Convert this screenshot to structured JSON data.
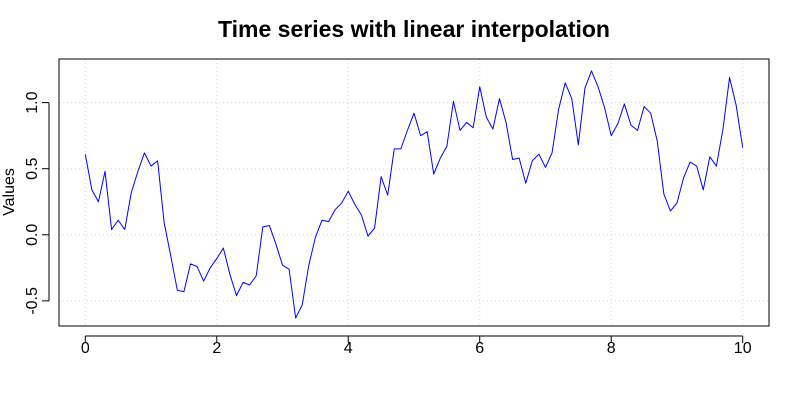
{
  "chart_data": {
    "type": "line",
    "title": "Time series with linear interpolation",
    "xlabel": "",
    "ylabel": "Values",
    "xlim": [
      -0.4,
      10.4
    ],
    "ylim": [
      -0.69,
      1.33
    ],
    "x_ticks": [
      0,
      2,
      4,
      6,
      8,
      10
    ],
    "x_tick_labels": [
      "0",
      "2",
      "4",
      "6",
      "8",
      "10"
    ],
    "y_ticks": [
      -0.5,
      0.0,
      0.5,
      1.0
    ],
    "y_tick_labels": [
      "-0.5",
      "0.0",
      "0.5",
      "1.0"
    ],
    "grid": true,
    "legend": "none",
    "colors": {
      "series": "#0000ff",
      "grid": "#d3d3d3",
      "axis": "#000000"
    },
    "series": [
      {
        "x": [
          0.0,
          0.1,
          0.2,
          0.3,
          0.4,
          0.5,
          0.6,
          0.7,
          0.8,
          0.9,
          1.0,
          1.1,
          1.2,
          1.3,
          1.4,
          1.5,
          1.6,
          1.7,
          1.8,
          1.9,
          2.0,
          2.1,
          2.2,
          2.3,
          2.4,
          2.5,
          2.6,
          2.7,
          2.8,
          2.9,
          3.0,
          3.1,
          3.2,
          3.3,
          3.4,
          3.5,
          3.6,
          3.7,
          3.8,
          3.9,
          4.0,
          4.1,
          4.2,
          4.3,
          4.4,
          4.5,
          4.6,
          4.7,
          4.8,
          4.9,
          5.0,
          5.1,
          5.2,
          5.3,
          5.4,
          5.5,
          5.6,
          5.7,
          5.8,
          5.9,
          6.0,
          6.1,
          6.2,
          6.3,
          6.4,
          6.5,
          6.6,
          6.7,
          6.8,
          6.9,
          7.0,
          7.1,
          7.2,
          7.3,
          7.4,
          7.5,
          7.6,
          7.7,
          7.8,
          7.9,
          8.0,
          8.1,
          8.2,
          8.3,
          8.4,
          8.5,
          8.6,
          8.7,
          8.8,
          8.9,
          9.0,
          9.1,
          9.2,
          9.3,
          9.4,
          9.5,
          9.6,
          9.7,
          9.8,
          9.9,
          10.0
        ],
        "values": [
          0.61,
          0.34,
          0.25,
          0.48,
          0.04,
          0.11,
          0.04,
          0.32,
          0.48,
          0.62,
          0.52,
          0.56,
          0.09,
          -0.16,
          -0.42,
          -0.43,
          -0.22,
          -0.24,
          -0.35,
          -0.25,
          -0.18,
          -0.1,
          -0.3,
          -0.46,
          -0.36,
          -0.38,
          -0.31,
          0.06,
          0.07,
          -0.07,
          -0.23,
          -0.26,
          -0.63,
          -0.53,
          -0.23,
          -0.02,
          0.11,
          0.1,
          0.19,
          0.24,
          0.33,
          0.23,
          0.15,
          -0.01,
          0.05,
          0.44,
          0.3,
          0.65,
          0.65,
          0.79,
          0.92,
          0.75,
          0.78,
          0.46,
          0.58,
          0.67,
          1.01,
          0.79,
          0.85,
          0.81,
          1.12,
          0.89,
          0.8,
          1.03,
          0.85,
          0.57,
          0.58,
          0.39,
          0.56,
          0.61,
          0.51,
          0.62,
          0.95,
          1.15,
          1.03,
          0.68,
          1.11,
          1.24,
          1.12,
          0.96,
          0.75,
          0.84,
          0.99,
          0.83,
          0.79,
          0.97,
          0.92,
          0.71,
          0.31,
          0.18,
          0.24,
          0.43,
          0.55,
          0.52,
          0.34,
          0.59,
          0.52,
          0.8,
          1.19,
          0.98,
          0.66
        ]
      }
    ]
  }
}
